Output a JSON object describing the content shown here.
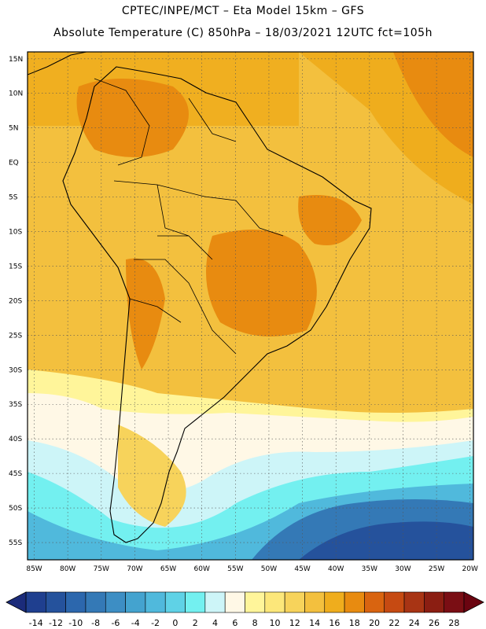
{
  "header": {
    "line1": "CPTEC/INPE/MCT  –   Eta Model 15km  –  GFS",
    "line2": "Absolute Temperature (C) 850hPa – 18/03/2021 12UTC fct=105h"
  },
  "map": {
    "lat_labels": [
      "15N",
      "10N",
      "5N",
      "EQ",
      "5S",
      "10S",
      "15S",
      "20S",
      "25S",
      "30S",
      "35S",
      "40S",
      "45S",
      "50S",
      "55S"
    ],
    "lon_labels": [
      "85W",
      "80W",
      "75W",
      "70W",
      "65W",
      "60W",
      "55W",
      "50W",
      "45W",
      "40W",
      "35W",
      "30W",
      "25W",
      "20W"
    ],
    "lat_range": [
      16,
      -57.5
    ],
    "lon_range": [
      -86,
      -19.5
    ]
  },
  "colorbar": {
    "ticks": [
      "-14",
      "-12",
      "-10",
      "-8",
      "-6",
      "-4",
      "-2",
      "0",
      "2",
      "4",
      "6",
      "8",
      "10",
      "12",
      "14",
      "16",
      "18",
      "20",
      "22",
      "24",
      "26",
      "28"
    ],
    "colors": [
      "#1f3f8f",
      "#25529c",
      "#2c67ad",
      "#3479b6",
      "#3d8ec4",
      "#44a3cf",
      "#50b9dc",
      "#5fd2e6",
      "#73f0f0",
      "#cdf5f8",
      "#fff8e6",
      "#fff59a",
      "#fce77a",
      "#f7d35b",
      "#f3c03e",
      "#efad1d",
      "#e88b10",
      "#d96410",
      "#c64a12",
      "#a83414",
      "#8b1e12",
      "#7a0e14"
    ],
    "left_arrow_color": "#1b2b7a",
    "right_arrow_color": "#6a0410"
  }
}
